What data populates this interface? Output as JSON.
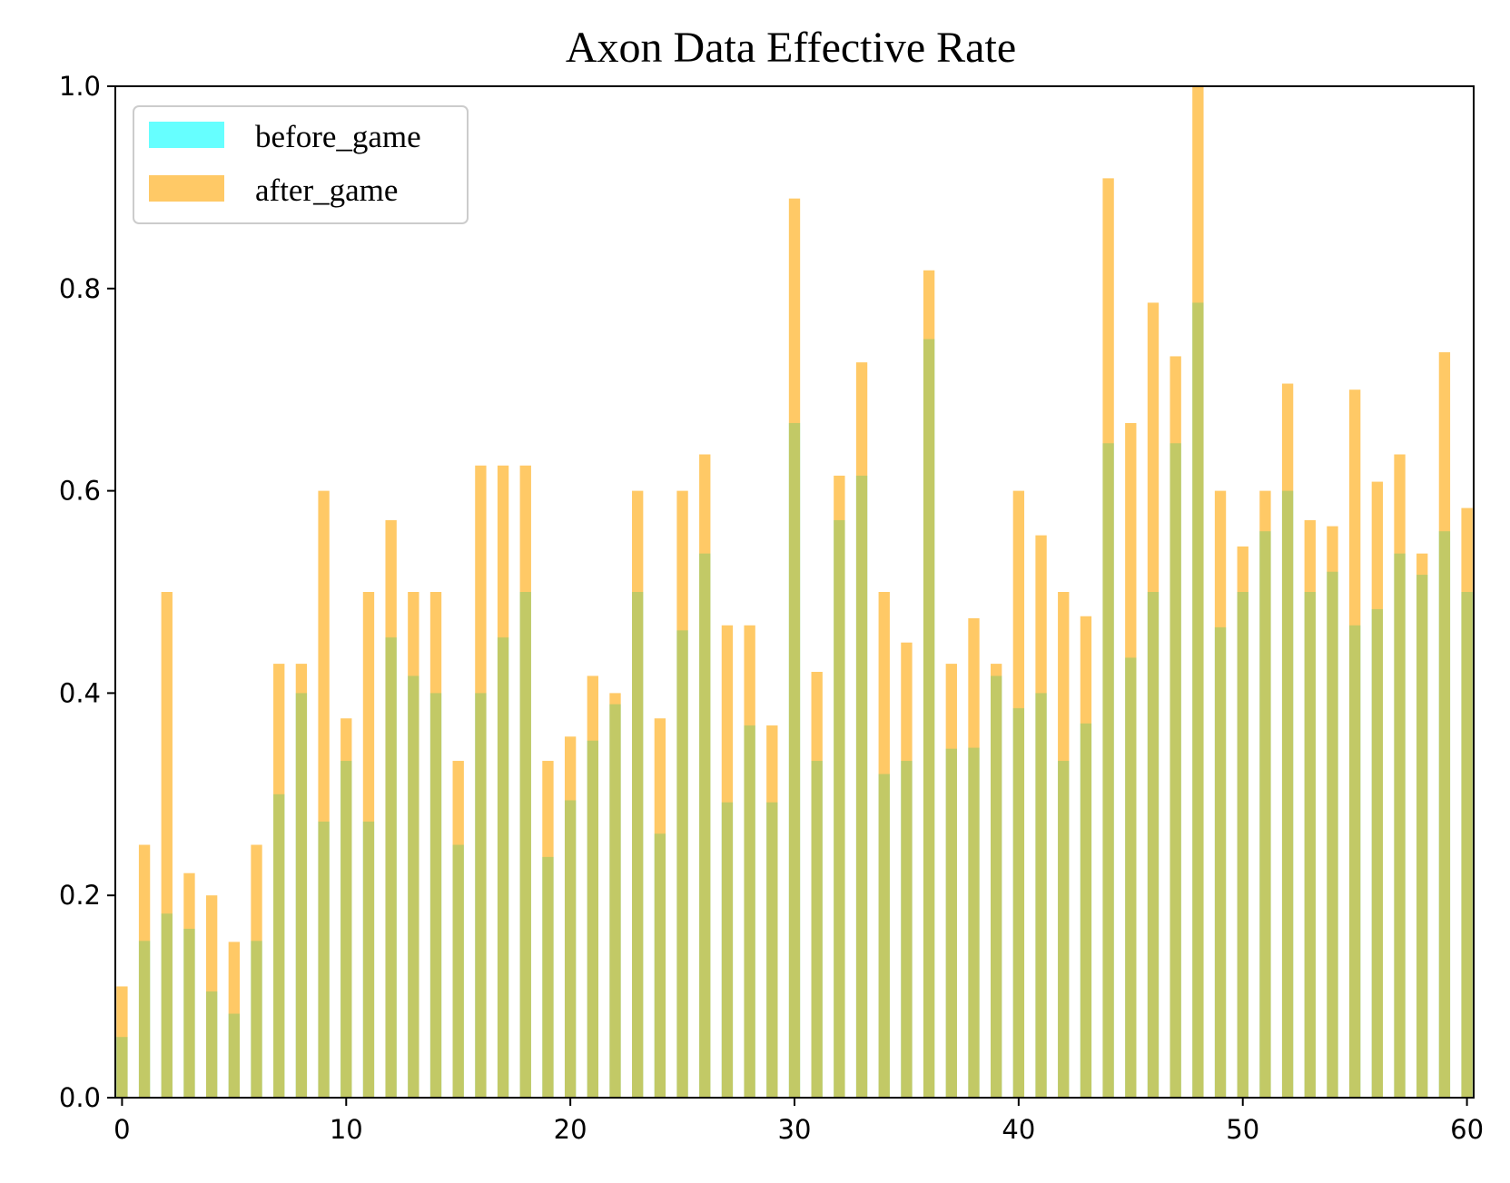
{
  "chart_data": {
    "type": "bar",
    "title": "Axon Data Effective Rate",
    "xlabel": "",
    "ylabel": "",
    "xlim": [
      -0.3,
      60.3
    ],
    "ylim": [
      0,
      1.0
    ],
    "x_ticks": [
      "0",
      "10",
      "20",
      "30",
      "40",
      "50",
      "60"
    ],
    "x_tick_values": [
      0,
      10,
      20,
      30,
      40,
      50,
      60
    ],
    "y_ticks": [
      "0.0",
      "0.2",
      "0.4",
      "0.6",
      "0.8",
      "1.0"
    ],
    "y_tick_values": [
      0,
      0.2,
      0.4,
      0.6,
      0.8,
      1.0
    ],
    "grid": false,
    "legend_position": "top-left",
    "overlay": true,
    "x": [
      0,
      1,
      2,
      3,
      4,
      5,
      6,
      7,
      8,
      9,
      10,
      11,
      12,
      13,
      14,
      15,
      16,
      17,
      18,
      19,
      20,
      21,
      22,
      23,
      24,
      25,
      26,
      27,
      28,
      29,
      30,
      31,
      32,
      33,
      34,
      35,
      36,
      37,
      38,
      39,
      40,
      41,
      42,
      43,
      44,
      45,
      46,
      47,
      48,
      49,
      50,
      51,
      52,
      53,
      54,
      55,
      56,
      57,
      58,
      59,
      60
    ],
    "series": [
      {
        "name": "before_game",
        "color": "#00ffff",
        "alpha": 0.6,
        "values": [
          0.06,
          0.155,
          0.182,
          0.167,
          0.105,
          0.083,
          0.155,
          0.3,
          0.4,
          0.273,
          0.333,
          0.273,
          0.455,
          0.417,
          0.4,
          0.25,
          0.4,
          0.455,
          0.5,
          0.238,
          0.294,
          0.353,
          0.389,
          0.5,
          0.261,
          0.462,
          0.538,
          0.292,
          0.368,
          0.292,
          0.667,
          0.333,
          0.571,
          0.615,
          0.32,
          0.333,
          0.75,
          0.345,
          0.346,
          0.417,
          0.385,
          0.4,
          0.333,
          0.37,
          0.647,
          0.435,
          0.5,
          0.647,
          0.786,
          0.465,
          0.5,
          0.56,
          0.6,
          0.5,
          0.52,
          0.467,
          0.483,
          0.538,
          0.517,
          0.56,
          0.5
        ]
      },
      {
        "name": "after_game",
        "color": "#ffa500",
        "alpha": 0.6,
        "values": [
          0.11,
          0.25,
          0.5,
          0.222,
          0.2,
          0.154,
          0.25,
          0.429,
          0.429,
          0.6,
          0.375,
          0.5,
          0.571,
          0.5,
          0.5,
          0.333,
          0.625,
          0.625,
          0.625,
          0.333,
          0.357,
          0.417,
          0.4,
          0.6,
          0.375,
          0.6,
          0.636,
          0.467,
          0.467,
          0.368,
          0.889,
          0.421,
          0.615,
          0.727,
          0.5,
          0.45,
          0.818,
          0.429,
          0.474,
          0.429,
          0.6,
          0.556,
          0.5,
          0.476,
          0.909,
          0.667,
          0.786,
          0.733,
          1.0,
          0.6,
          0.545,
          0.6,
          0.706,
          0.571,
          0.565,
          0.7,
          0.609,
          0.636,
          0.538,
          0.737,
          0.583
        ]
      }
    ]
  }
}
